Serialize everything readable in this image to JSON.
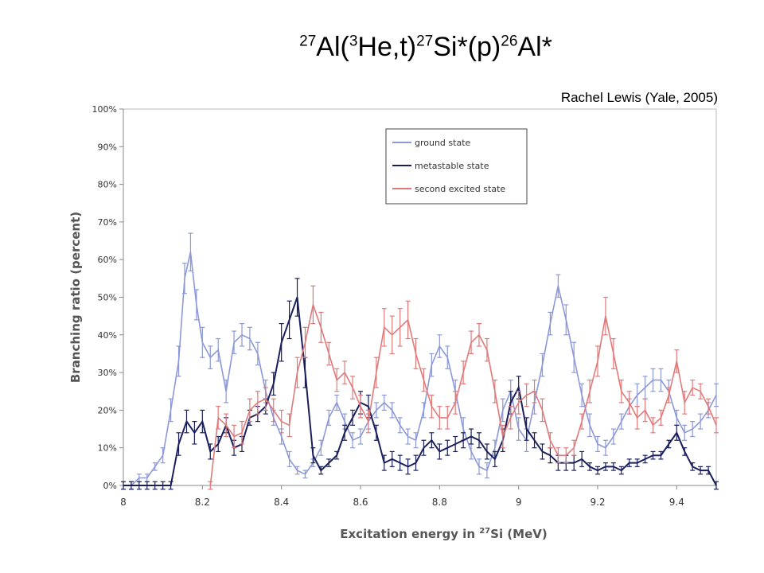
{
  "slide": {
    "title_parts": [
      {
        "t": "sup",
        "v": "27"
      },
      {
        "t": "txt",
        "v": "Al("
      },
      {
        "t": "sup",
        "v": "3"
      },
      {
        "t": "txt",
        "v": "He,t)"
      },
      {
        "t": "sup",
        "v": "27"
      },
      {
        "t": "txt",
        "v": "Si*(p)"
      },
      {
        "t": "sup",
        "v": "26"
      },
      {
        "t": "txt",
        "v": "Al*"
      }
    ],
    "credit": "Rachel Lewis (Yale, 2005)"
  },
  "chart_data": {
    "type": "line",
    "xlabel_parts": [
      "Excitation energy in ",
      "27",
      "Si (MeV)"
    ],
    "ylabel": "Branching ratio (percent)",
    "xlim": [
      8,
      9.5
    ],
    "ylim": [
      0,
      100
    ],
    "x_ticks": [
      8,
      8.2,
      8.4,
      8.6,
      8.8,
      9,
      9.2,
      9.4
    ],
    "x_tick_labels": [
      "8",
      "8.2",
      "8.4",
      "8.6",
      "8.8",
      "9",
      "9.2",
      "9.4"
    ],
    "y_ticks": [
      0,
      10,
      20,
      30,
      40,
      50,
      60,
      70,
      80,
      90,
      100
    ],
    "y_tick_labels": [
      "0%",
      "10%",
      "20%",
      "30%",
      "40%",
      "50%",
      "60%",
      "70%",
      "80%",
      "90%",
      "100%"
    ],
    "grid": false,
    "legend_position": "top-center",
    "series": [
      {
        "name": "ground state",
        "color": "#8c98d8",
        "points": [
          [
            8.02,
            0,
            1
          ],
          [
            8.04,
            2,
            1
          ],
          [
            8.06,
            2,
            1
          ],
          [
            8.08,
            5,
            1
          ],
          [
            8.1,
            8,
            2
          ],
          [
            8.12,
            20,
            3
          ],
          [
            8.14,
            33,
            4
          ],
          [
            8.155,
            55,
            4
          ],
          [
            8.17,
            62,
            5
          ],
          [
            8.185,
            48,
            4
          ],
          [
            8.2,
            38,
            4
          ],
          [
            8.22,
            34,
            3
          ],
          [
            8.24,
            36,
            3
          ],
          [
            8.26,
            25,
            3
          ],
          [
            8.28,
            38,
            3
          ],
          [
            8.3,
            40,
            3
          ],
          [
            8.32,
            39,
            3
          ],
          [
            8.34,
            35,
            3
          ],
          [
            8.36,
            25,
            3
          ],
          [
            8.38,
            18,
            2
          ],
          [
            8.4,
            13,
            2
          ],
          [
            8.42,
            7,
            2
          ],
          [
            8.44,
            4,
            1
          ],
          [
            8.46,
            3,
            1
          ],
          [
            8.48,
            6,
            1
          ],
          [
            8.5,
            10,
            2
          ],
          [
            8.52,
            18,
            2
          ],
          [
            8.54,
            22,
            2
          ],
          [
            8.56,
            17,
            2
          ],
          [
            8.58,
            12,
            2
          ],
          [
            8.6,
            13,
            2
          ],
          [
            8.62,
            17,
            2
          ],
          [
            8.64,
            20,
            2
          ],
          [
            8.66,
            22,
            2
          ],
          [
            8.68,
            20,
            2
          ],
          [
            8.7,
            16,
            2
          ],
          [
            8.72,
            13,
            2
          ],
          [
            8.74,
            12,
            2
          ],
          [
            8.76,
            20,
            2
          ],
          [
            8.78,
            32,
            3
          ],
          [
            8.8,
            37,
            3
          ],
          [
            8.82,
            34,
            3
          ],
          [
            8.84,
            25,
            3
          ],
          [
            8.86,
            15,
            3
          ],
          [
            8.88,
            9,
            2
          ],
          [
            8.9,
            5,
            2
          ],
          [
            8.92,
            4,
            2
          ],
          [
            8.94,
            10,
            2
          ],
          [
            8.96,
            20,
            3
          ],
          [
            8.98,
            25,
            3
          ],
          [
            9,
            15,
            3
          ],
          [
            9.02,
            12,
            3
          ],
          [
            9.04,
            22,
            3
          ],
          [
            9.06,
            32,
            3
          ],
          [
            9.08,
            43,
            3
          ],
          [
            9.1,
            53,
            3
          ],
          [
            9.12,
            44,
            4
          ],
          [
            9.14,
            34,
            4
          ],
          [
            9.16,
            24,
            3
          ],
          [
            9.18,
            16,
            3
          ],
          [
            9.2,
            11,
            2
          ],
          [
            9.22,
            10,
            2
          ],
          [
            9.24,
            13,
            2
          ],
          [
            9.26,
            17,
            2
          ],
          [
            9.28,
            21,
            2
          ],
          [
            9.3,
            24,
            3
          ],
          [
            9.32,
            26,
            3
          ],
          [
            9.34,
            28,
            3
          ],
          [
            9.36,
            28,
            3
          ],
          [
            9.38,
            25,
            3
          ],
          [
            9.4,
            18,
            2
          ],
          [
            9.42,
            14,
            2
          ],
          [
            9.44,
            15,
            2
          ],
          [
            9.46,
            17,
            2
          ],
          [
            9.48,
            20,
            2
          ],
          [
            9.5,
            24,
            3
          ]
        ]
      },
      {
        "name": "metastable state",
        "color": "#1a1f5c",
        "points": [
          [
            8,
            0,
            1
          ],
          [
            8.02,
            0,
            1
          ],
          [
            8.04,
            0,
            1
          ],
          [
            8.06,
            0,
            1
          ],
          [
            8.08,
            0,
            1
          ],
          [
            8.1,
            0,
            1
          ],
          [
            8.12,
            0,
            1
          ],
          [
            8.14,
            11,
            3
          ],
          [
            8.16,
            17,
            3
          ],
          [
            8.18,
            14,
            3
          ],
          [
            8.2,
            17,
            3
          ],
          [
            8.22,
            9,
            2
          ],
          [
            8.24,
            11,
            2
          ],
          [
            8.26,
            16,
            2
          ],
          [
            8.28,
            10,
            2
          ],
          [
            8.3,
            11,
            2
          ],
          [
            8.32,
            18,
            2
          ],
          [
            8.34,
            19,
            2
          ],
          [
            8.36,
            21,
            2
          ],
          [
            8.38,
            27,
            3
          ],
          [
            8.4,
            38,
            5
          ],
          [
            8.42,
            44,
            5
          ],
          [
            8.44,
            50,
            5
          ],
          [
            8.46,
            30,
            4
          ],
          [
            8.48,
            8,
            2
          ],
          [
            8.5,
            4,
            1
          ],
          [
            8.52,
            6,
            1
          ],
          [
            8.54,
            8,
            1
          ],
          [
            8.56,
            14,
            2
          ],
          [
            8.58,
            18,
            2
          ],
          [
            8.6,
            22,
            3
          ],
          [
            8.62,
            21,
            3
          ],
          [
            8.64,
            14,
            2
          ],
          [
            8.66,
            6,
            2
          ],
          [
            8.68,
            7,
            2
          ],
          [
            8.7,
            6,
            2
          ],
          [
            8.72,
            5,
            2
          ],
          [
            8.74,
            6,
            2
          ],
          [
            8.76,
            10,
            2
          ],
          [
            8.78,
            12,
            2
          ],
          [
            8.8,
            9,
            2
          ],
          [
            8.82,
            10,
            2
          ],
          [
            8.84,
            11,
            2
          ],
          [
            8.86,
            12,
            2
          ],
          [
            8.88,
            13,
            2
          ],
          [
            8.9,
            12,
            2
          ],
          [
            8.92,
            9,
            2
          ],
          [
            8.94,
            7,
            2
          ],
          [
            8.96,
            12,
            3
          ],
          [
            8.98,
            22,
            3
          ],
          [
            9,
            26,
            3
          ],
          [
            9.02,
            15,
            3
          ],
          [
            9.04,
            12,
            2
          ],
          [
            9.06,
            9,
            2
          ],
          [
            9.08,
            8,
            2
          ],
          [
            9.1,
            6,
            2
          ],
          [
            9.12,
            6,
            2
          ],
          [
            9.14,
            6,
            2
          ],
          [
            9.16,
            7,
            2
          ],
          [
            9.18,
            5,
            1
          ],
          [
            9.2,
            4,
            1
          ],
          [
            9.22,
            5,
            1
          ],
          [
            9.24,
            5,
            1
          ],
          [
            9.26,
            4,
            1
          ],
          [
            9.28,
            6,
            1
          ],
          [
            9.3,
            6,
            1
          ],
          [
            9.32,
            7,
            1
          ],
          [
            9.34,
            8,
            1
          ],
          [
            9.36,
            8,
            1
          ],
          [
            9.38,
            11,
            1
          ],
          [
            9.4,
            14,
            2
          ],
          [
            9.42,
            9,
            1
          ],
          [
            9.44,
            5,
            1
          ],
          [
            9.46,
            4,
            1
          ],
          [
            9.48,
            4,
            1
          ],
          [
            9.5,
            0,
            1
          ]
        ]
      },
      {
        "name": "second excited state",
        "color": "#e07a7a",
        "points": [
          [
            8.22,
            0,
            1
          ],
          [
            8.24,
            18,
            3
          ],
          [
            8.26,
            16,
            3
          ],
          [
            8.28,
            13,
            3
          ],
          [
            8.3,
            14,
            3
          ],
          [
            8.32,
            20,
            3
          ],
          [
            8.34,
            22,
            3
          ],
          [
            8.36,
            23,
            3
          ],
          [
            8.38,
            20,
            3
          ],
          [
            8.4,
            17,
            3
          ],
          [
            8.42,
            16,
            3
          ],
          [
            8.44,
            30,
            4
          ],
          [
            8.46,
            38,
            4
          ],
          [
            8.48,
            48,
            5
          ],
          [
            8.5,
            42,
            4
          ],
          [
            8.52,
            35,
            3
          ],
          [
            8.54,
            28,
            3
          ],
          [
            8.56,
            30,
            3
          ],
          [
            8.58,
            26,
            3
          ],
          [
            8.6,
            21,
            3
          ],
          [
            8.62,
            17,
            3
          ],
          [
            8.64,
            30,
            4
          ],
          [
            8.66,
            42,
            5
          ],
          [
            8.68,
            40,
            5
          ],
          [
            8.7,
            42,
            5
          ],
          [
            8.72,
            44,
            5
          ],
          [
            8.74,
            35,
            4
          ],
          [
            8.76,
            28,
            3
          ],
          [
            8.78,
            21,
            3
          ],
          [
            8.8,
            18,
            3
          ],
          [
            8.82,
            18,
            3
          ],
          [
            8.84,
            22,
            3
          ],
          [
            8.86,
            30,
            3
          ],
          [
            8.88,
            38,
            3
          ],
          [
            8.9,
            40,
            3
          ],
          [
            8.92,
            36,
            3
          ],
          [
            8.94,
            25,
            3
          ],
          [
            8.96,
            13,
            3
          ],
          [
            8.98,
            18,
            3
          ],
          [
            9,
            22,
            3
          ],
          [
            9.02,
            24,
            3
          ],
          [
            9.04,
            25,
            3
          ],
          [
            9.06,
            20,
            3
          ],
          [
            9.08,
            12,
            2
          ],
          [
            9.1,
            8,
            2
          ],
          [
            9.12,
            8,
            2
          ],
          [
            9.14,
            10,
            2
          ],
          [
            9.16,
            17,
            2
          ],
          [
            9.18,
            25,
            3
          ],
          [
            9.2,
            33,
            4
          ],
          [
            9.22,
            45,
            5
          ],
          [
            9.24,
            35,
            4
          ],
          [
            9.26,
            25,
            3
          ],
          [
            9.28,
            22,
            3
          ],
          [
            9.3,
            18,
            3
          ],
          [
            9.32,
            20,
            3
          ],
          [
            9.34,
            16,
            2
          ],
          [
            9.36,
            18,
            2
          ],
          [
            9.38,
            24,
            2
          ],
          [
            9.4,
            33,
            3
          ],
          [
            9.42,
            22,
            3
          ],
          [
            9.44,
            26,
            2
          ],
          [
            9.46,
            25,
            2
          ],
          [
            9.48,
            21,
            2
          ],
          [
            9.5,
            16,
            2
          ]
        ]
      }
    ]
  }
}
